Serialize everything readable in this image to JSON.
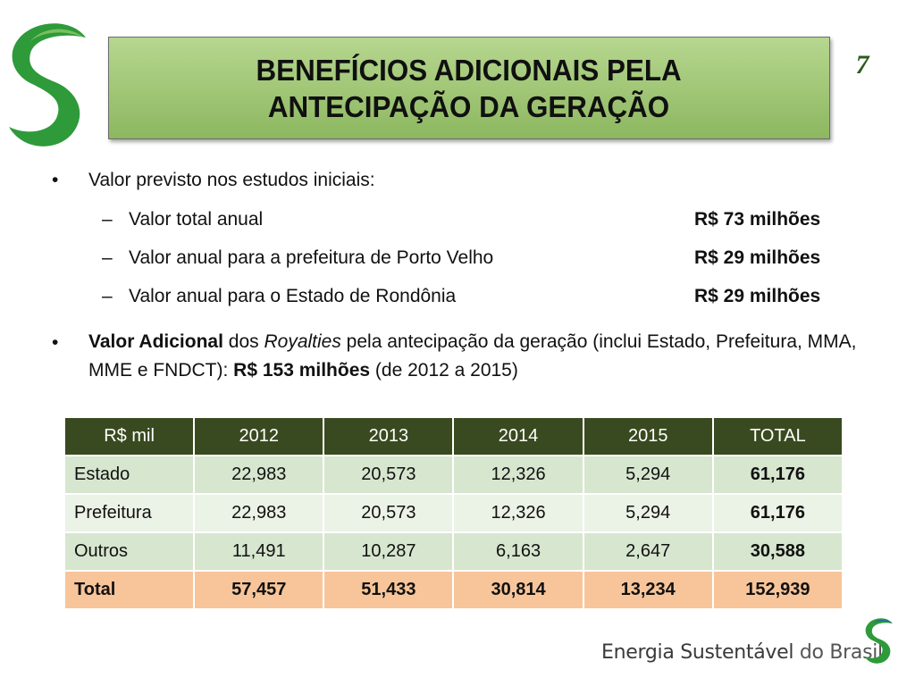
{
  "title": {
    "line1": "BENEFÍCIOS ADICIONAIS PELA",
    "line2": "ANTECIPAÇÃO DA GERAÇÃO"
  },
  "slide_number": "7",
  "bullets": {
    "b1": "Valor previsto nos estudos iniciais:",
    "items": [
      {
        "label": "Valor total anual",
        "value": "R$ 73 milhões"
      },
      {
        "label": "Valor anual para a prefeitura de Porto Velho",
        "value": "R$ 29 milhões"
      },
      {
        "label": "Valor anual para o Estado de Rondônia",
        "value": "R$ 29 milhões"
      }
    ],
    "b2": {
      "bold1": "Valor Adicional",
      "t1": " dos ",
      "italic": "Royalties",
      "t2": " pela antecipação da geração (inclui Estado, Prefeitura, MMA, MME e FNDCT): ",
      "bold2": "R$ 153 milhões",
      "t3": " (de 2012 a 2015)"
    }
  },
  "table": {
    "headers": [
      "R$ mil",
      "2012",
      "2013",
      "2014",
      "2015",
      "TOTAL"
    ],
    "rows": [
      [
        "Estado",
        "22,983",
        "20,573",
        "12,326",
        "5,294",
        "61,176"
      ],
      [
        "Prefeitura",
        "22,983",
        "20,573",
        "12,326",
        "5,294",
        "61,176"
      ],
      [
        "Outros",
        "11,491",
        "10,287",
        "6,163",
        "2,647",
        "30,588"
      ],
      [
        "Total",
        "57,457",
        "51,433",
        "30,814",
        "13,234",
        "152,939"
      ]
    ]
  },
  "footer": {
    "brand_a": "Energia Sustentável",
    "brand_b": " do Brasil"
  },
  "colors": {
    "title_bg": "#a4c878",
    "table_header": "#3a4a20",
    "row_dark": "#d7e6cf",
    "row_light": "#ebf2e6",
    "total_row": "#f8c59a",
    "logo_green": "#2e9a3a"
  },
  "icons": {
    "logo": "green-s-leaf-logo"
  }
}
